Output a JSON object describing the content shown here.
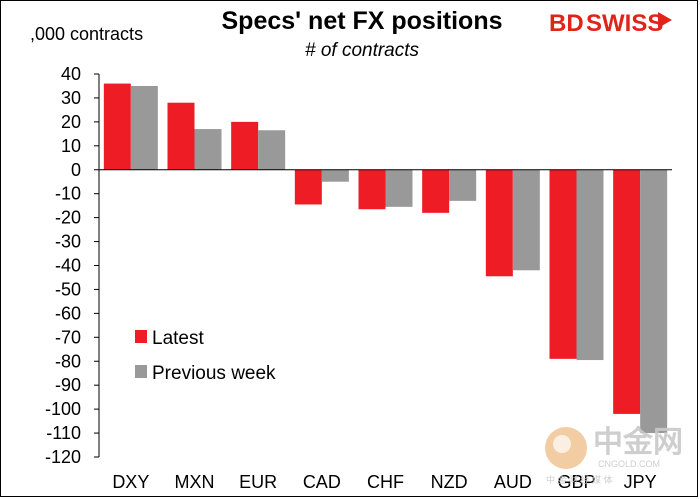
{
  "chart_data": {
    "type": "bar",
    "title": "Specs' net FX positions",
    "subtitle": "# of contracts",
    "ylabel": ",000 contracts",
    "categories": [
      "DXY",
      "MXN",
      "EUR",
      "CAD",
      "CHF",
      "NZD",
      "AUD",
      "GBP",
      "JPY"
    ],
    "series": [
      {
        "name": "Latest",
        "color": "#ee1c25",
        "values": [
          36,
          28,
          20,
          -14.5,
          -16.5,
          -18,
          -44.5,
          -79,
          -102
        ]
      },
      {
        "name": "Previous week",
        "color": "#999999",
        "values": [
          35,
          17,
          16.5,
          -5,
          -15.5,
          -13,
          -42,
          -79.5,
          -110
        ]
      }
    ],
    "ylim": [
      -120,
      40
    ],
    "yticks": [
      40,
      30,
      20,
      10,
      0,
      -10,
      -20,
      -30,
      -40,
      -50,
      -60,
      -70,
      -80,
      -90,
      -100,
      -110,
      -120
    ],
    "legend_position": "lower-left",
    "grid": false
  },
  "brand": {
    "part1": "BD",
    "part2": "SWISS"
  },
  "watermark": {
    "chinese": "中金网",
    "url": "CNGOLD.COM",
    "sub": "中 金 财 经 媒 体"
  }
}
